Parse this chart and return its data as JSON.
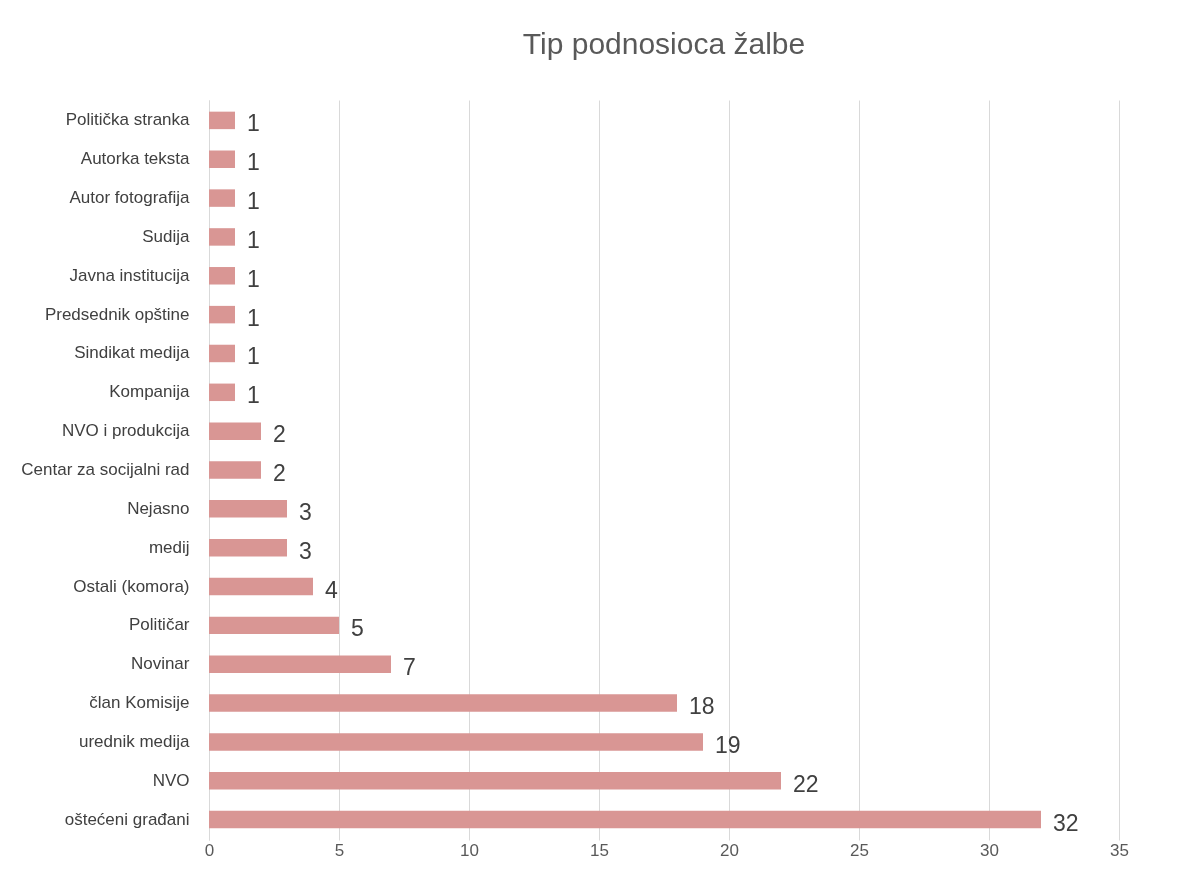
{
  "chart_data": {
    "type": "bar",
    "orientation": "horizontal",
    "title": "Tip podnosioca žalbe",
    "categories": [
      "Politička stranka",
      "Autorka teksta",
      "Autor fotografija",
      "Sudija",
      "Javna institucija",
      "Predsednik opštine",
      "Sindikat medija",
      "Kompanija",
      "NVO i produkcija",
      "Centar za socijalni rad",
      "Nejasno",
      "medij",
      "Ostali (komora)",
      "Političar",
      "Novinar",
      "član Komisije",
      "urednik medija",
      "NVO",
      "oštećeni građani"
    ],
    "values": [
      1,
      1,
      1,
      1,
      1,
      1,
      1,
      1,
      2,
      2,
      3,
      3,
      4,
      5,
      7,
      18,
      19,
      22,
      32
    ],
    "color": "#d99694",
    "xlim": [
      0,
      35
    ],
    "xticks": [
      0,
      5,
      10,
      15,
      20,
      25,
      30,
      35
    ],
    "grid": "x",
    "data_labels": true
  }
}
